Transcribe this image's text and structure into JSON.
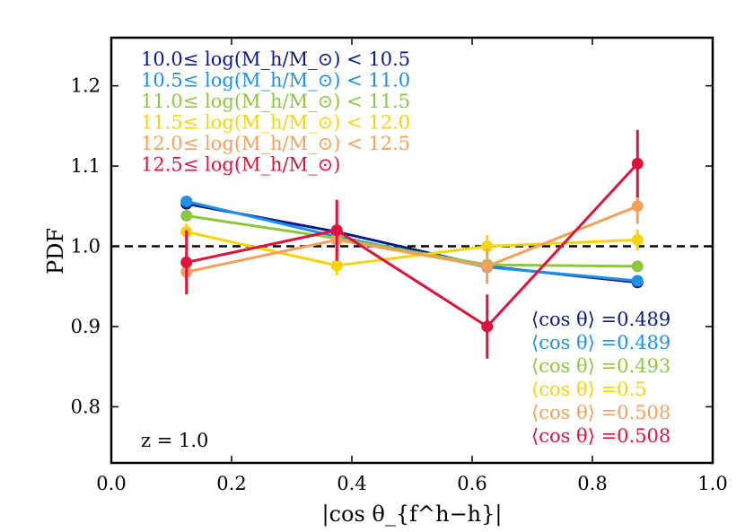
{
  "chart_data": {
    "type": "line",
    "title": "",
    "xlabel": "|cos θ_{f^h−h}|",
    "ylabel": "PDF",
    "xlim": [
      0.0,
      1.0
    ],
    "ylim": [
      0.73,
      1.26
    ],
    "x_ticks": [
      "0.0",
      "0.2",
      "0.4",
      "0.6",
      "0.8",
      "1.0"
    ],
    "y_ticks": [
      "0.8",
      "0.9",
      "1.0",
      "1.1",
      "1.2"
    ],
    "x_tick_values": [
      0.0,
      0.2,
      0.4,
      0.6,
      0.8,
      1.0
    ],
    "y_tick_values": [
      0.8,
      0.9,
      1.0,
      1.1,
      1.2
    ],
    "reference_line": {
      "y": 1.0,
      "style": "dashed",
      "color": "#000000"
    },
    "annotation": "z = 1.0",
    "x": [
      0.125,
      0.375,
      0.625,
      0.875
    ],
    "series": [
      {
        "name": "10.0≤ log(M_h/M_⊙) < 10.5",
        "color": "#0a1a8c",
        "values": [
          1.053,
          1.018,
          0.975,
          0.955
        ],
        "errors": [
          0.004,
          0.003,
          0.003,
          0.004
        ],
        "mean_label": "⟨cos θ⟩ =0.489"
      },
      {
        "name": "10.5≤ log(M_h/M_⊙) < 11.0",
        "color": "#1e90e6",
        "values": [
          1.056,
          1.012,
          0.974,
          0.957
        ],
        "errors": [
          0.004,
          0.003,
          0.003,
          0.004
        ],
        "mean_label": "⟨cos θ⟩ =0.489"
      },
      {
        "name": "11.0≤ log(M_h/M_⊙) < 11.5",
        "color": "#8dc63f",
        "values": [
          1.038,
          1.01,
          0.977,
          0.975
        ],
        "errors": [
          0.005,
          0.004,
          0.004,
          0.006
        ],
        "mean_label": "⟨cos θ⟩ =0.493"
      },
      {
        "name": "11.5≤ log(M_h/M_⊙) < 12.0",
        "color": "#f5d50a",
        "values": [
          1.018,
          0.976,
          1.0,
          1.008
        ],
        "errors": [
          0.01,
          0.012,
          0.014,
          0.013
        ],
        "mean_label": "⟨cos θ⟩ =0.5"
      },
      {
        "name": "12.0≤ log(M_h/M_⊙) < 12.5",
        "color": "#f5a05a",
        "values": [
          0.968,
          1.008,
          0.975,
          1.05
        ],
        "errors": [
          0.02,
          0.02,
          0.022,
          0.022
        ],
        "mean_label": "⟨cos θ⟩ =0.508"
      },
      {
        "name": "12.5≤ log(M_h/M_⊙)",
        "color": "#dc143c",
        "values": [
          0.98,
          1.02,
          0.9,
          1.103
        ],
        "errors": [
          0.04,
          0.038,
          0.04,
          0.042
        ],
        "mean_label": "⟨cos θ⟩ =0.508"
      }
    ]
  }
}
